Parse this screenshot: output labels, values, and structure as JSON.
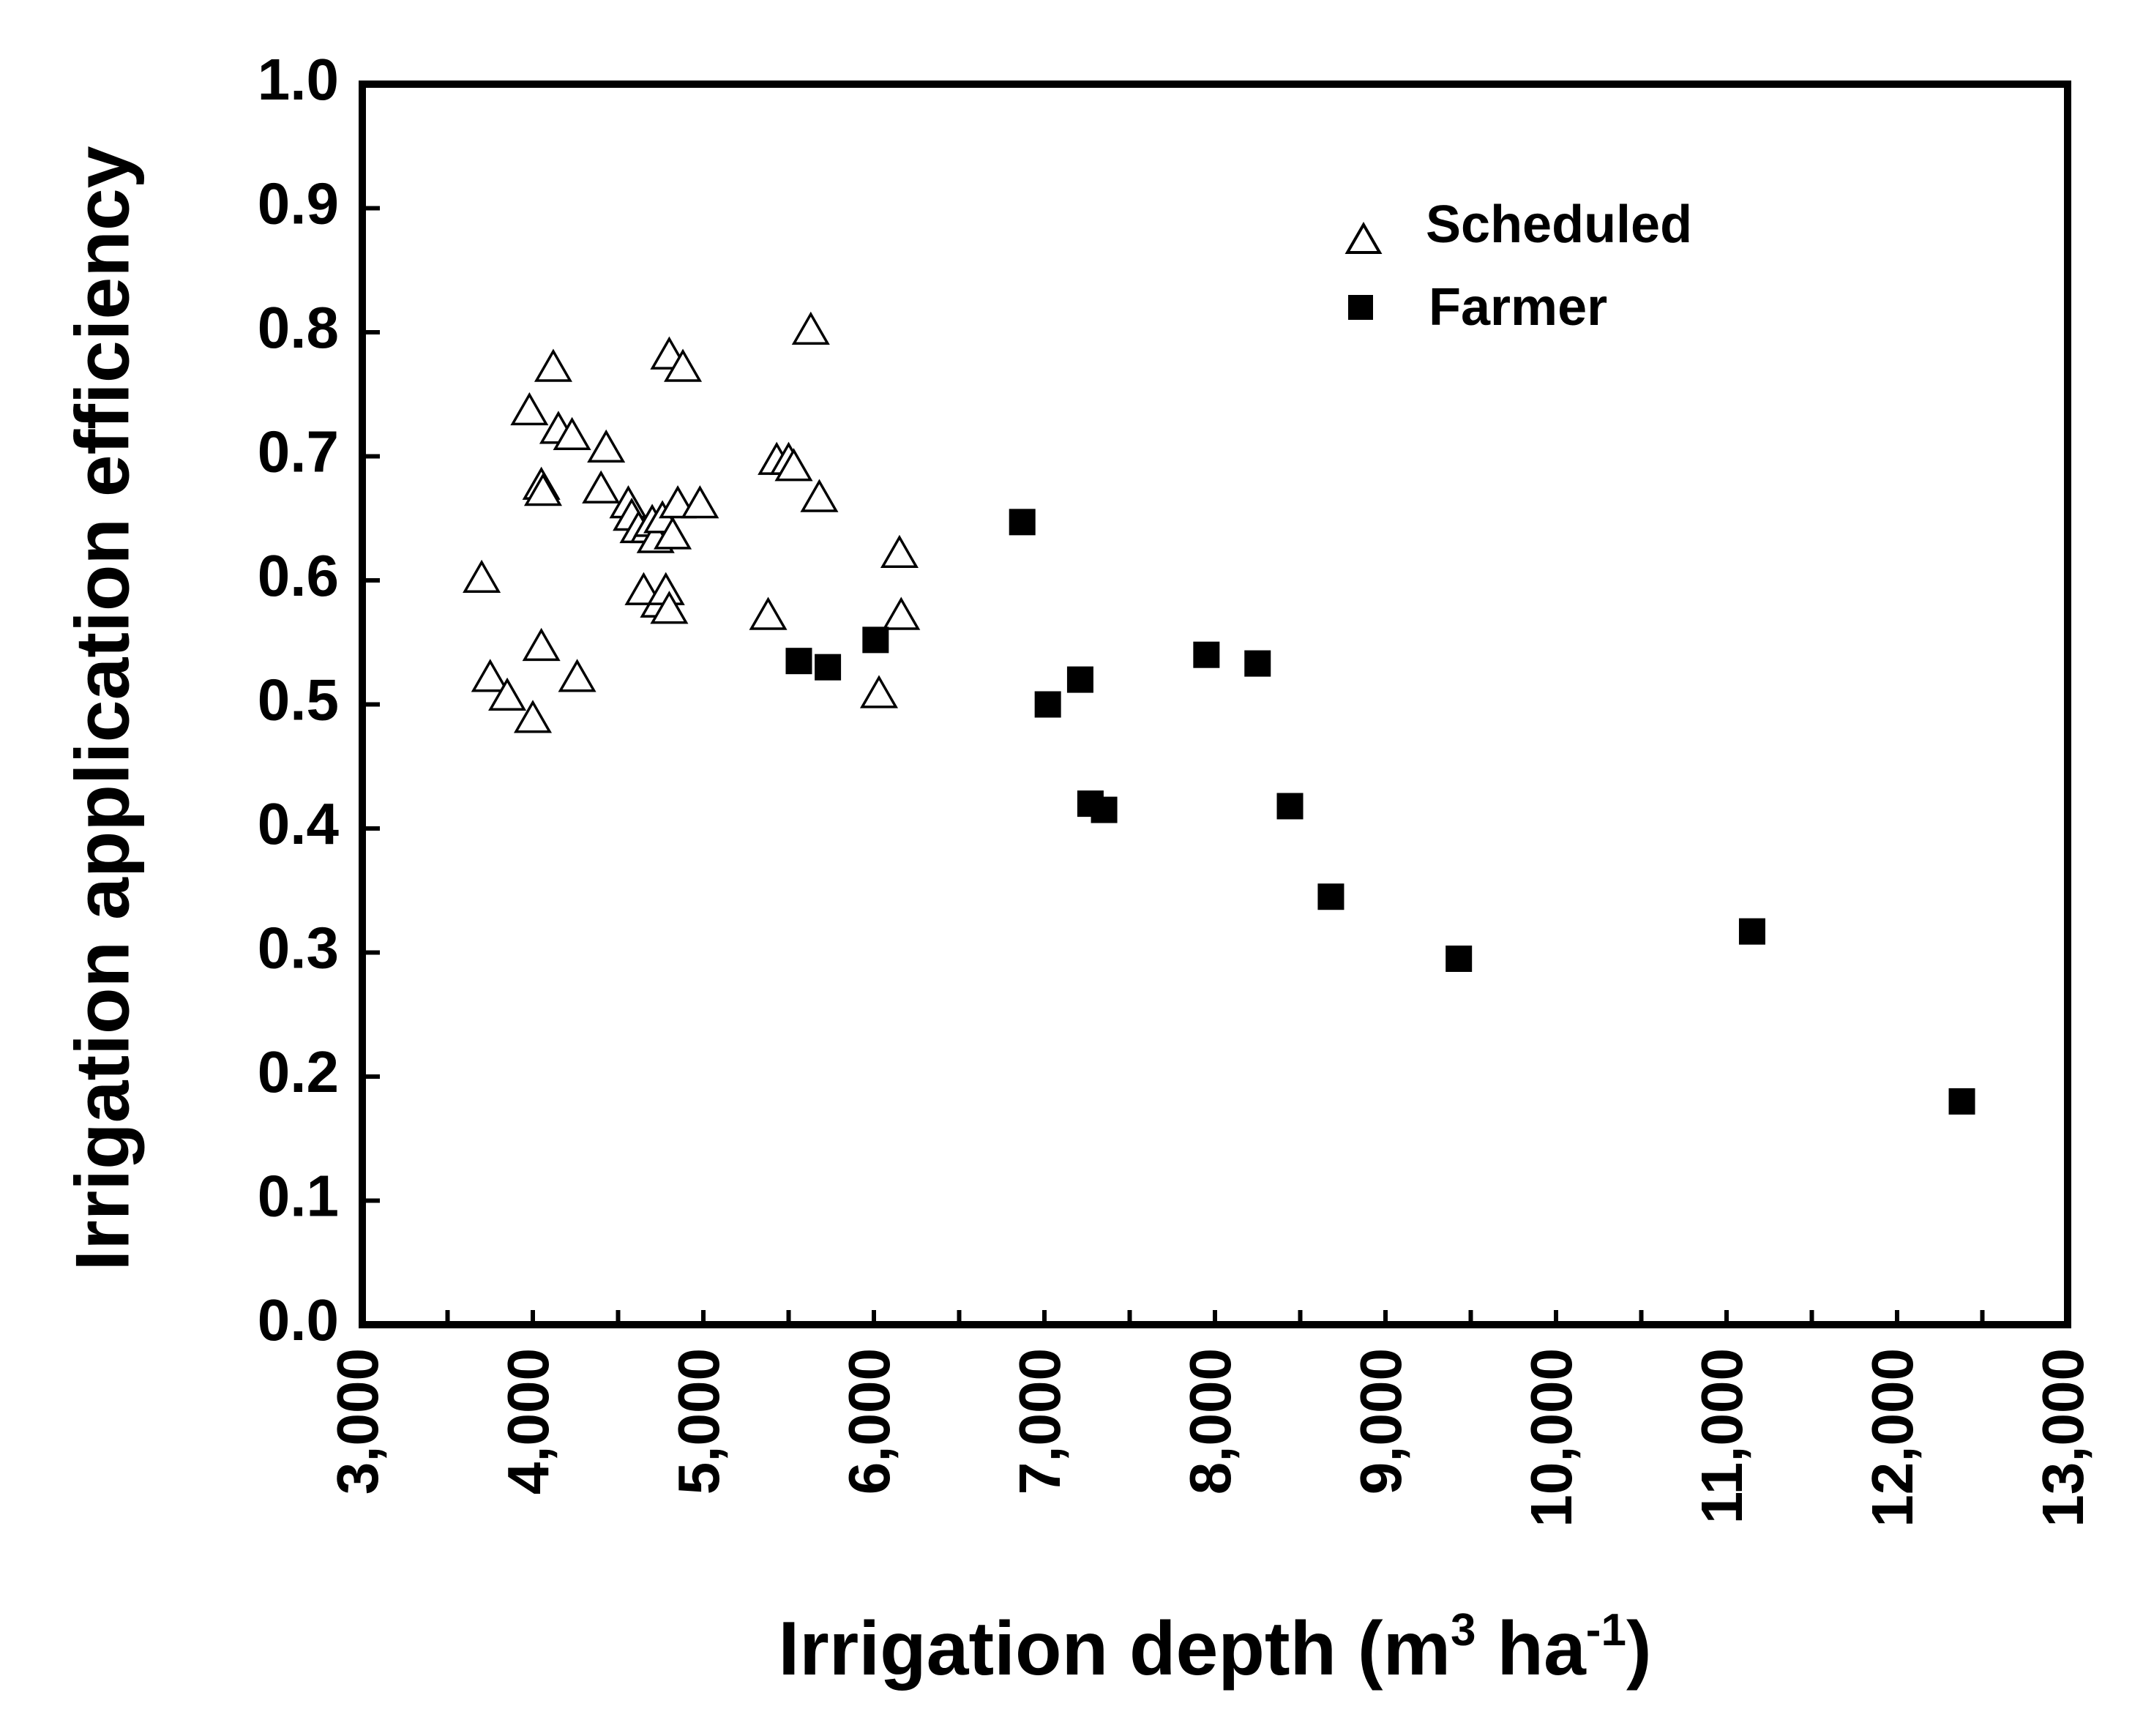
{
  "chart_data": {
    "type": "scatter",
    "title": "",
    "xlabel": "Irrigation depth (m",
    "xlabel_sup1": "3",
    "xlabel_mid": " ha",
    "xlabel_sup2": "-1",
    "xlabel_end": ")",
    "ylabel": "Irrigation application efficiency",
    "xlim": [
      3000,
      13000
    ],
    "ylim": [
      0,
      1
    ],
    "x_ticks": [
      3000,
      4000,
      5000,
      6000,
      7000,
      8000,
      9000,
      10000,
      11000,
      12000,
      13000
    ],
    "x_tick_labels": [
      "3,000",
      "4,000",
      "5,000",
      "6,000",
      "7,000",
      "8,000",
      "9,000",
      "10,000",
      "11,000",
      "12,000",
      "13,000"
    ],
    "y_ticks": [
      0,
      0.1,
      0.2,
      0.3,
      0.4,
      0.5,
      0.6,
      0.7,
      0.8,
      0.9,
      1.0
    ],
    "y_tick_labels": [
      "0.0",
      "0.1",
      "0.2",
      "0.3",
      "0.4",
      "0.5",
      "0.6",
      "0.7",
      "0.8",
      "0.9",
      "1.0"
    ],
    "grid": false,
    "legend_position": "top-right",
    "series": [
      {
        "name": "Scheduled",
        "marker": "open-triangle",
        "color": "#000000",
        "points": [
          [
            3700,
            0.6
          ],
          [
            3750,
            0.52
          ],
          [
            3850,
            0.505
          ],
          [
            3980,
            0.735
          ],
          [
            4000,
            0.487
          ],
          [
            4050,
            0.545
          ],
          [
            4050,
            0.675
          ],
          [
            4060,
            0.67
          ],
          [
            4120,
            0.77
          ],
          [
            4150,
            0.72
          ],
          [
            4230,
            0.715
          ],
          [
            4260,
            0.52
          ],
          [
            4400,
            0.672
          ],
          [
            4430,
            0.705
          ],
          [
            4560,
            0.66
          ],
          [
            4580,
            0.65
          ],
          [
            4620,
            0.64
          ],
          [
            4650,
            0.59
          ],
          [
            4680,
            0.64
          ],
          [
            4700,
            0.645
          ],
          [
            4720,
            0.632
          ],
          [
            4740,
            0.58
          ],
          [
            4760,
            0.648
          ],
          [
            4780,
            0.59
          ],
          [
            4800,
            0.78
          ],
          [
            4800,
            0.575
          ],
          [
            4820,
            0.635
          ],
          [
            4850,
            0.66
          ],
          [
            4880,
            0.77
          ],
          [
            4980,
            0.66
          ],
          [
            5380,
            0.57
          ],
          [
            5430,
            0.695
          ],
          [
            5500,
            0.695
          ],
          [
            5530,
            0.69
          ],
          [
            5630,
            0.8
          ],
          [
            5680,
            0.665
          ],
          [
            6030,
            0.507
          ],
          [
            6150,
            0.62
          ],
          [
            6160,
            0.57
          ]
        ]
      },
      {
        "name": "Farmer",
        "marker": "filled-square",
        "color": "#000000",
        "points": [
          [
            5560,
            0.535
          ],
          [
            5730,
            0.53
          ],
          [
            6010,
            0.552
          ],
          [
            6870,
            0.647
          ],
          [
            7020,
            0.5
          ],
          [
            7210,
            0.52
          ],
          [
            7270,
            0.42
          ],
          [
            7350,
            0.415
          ],
          [
            7950,
            0.54
          ],
          [
            8250,
            0.533
          ],
          [
            8440,
            0.418
          ],
          [
            8680,
            0.345
          ],
          [
            9430,
            0.295
          ],
          [
            11150,
            0.317
          ],
          [
            12380,
            0.18
          ]
        ]
      }
    ]
  }
}
